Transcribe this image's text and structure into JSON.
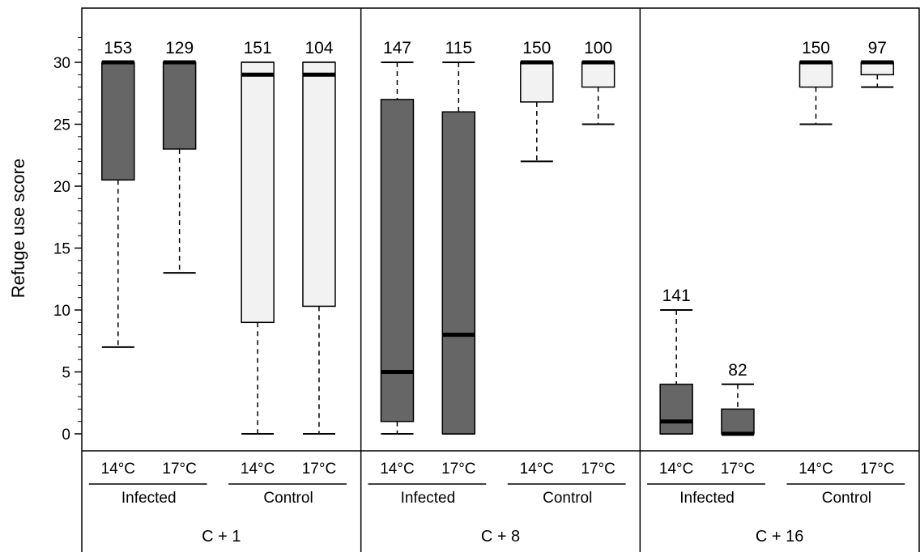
{
  "chart_data": {
    "type": "boxplot",
    "ylabel": "Refuge use score",
    "ylim": [
      0,
      33
    ],
    "yticks": [
      0,
      5,
      10,
      15,
      20,
      25,
      30
    ],
    "colors": {
      "infected": "#666666",
      "control": "#f2f2f2",
      "median": "#000000"
    },
    "panels": [
      {
        "label": "C + 1",
        "groups": [
          {
            "label": "Infected",
            "fill": "infected",
            "boxes": [
              {
                "temp": "14°C",
                "n": "153",
                "whisker_low": 7,
                "q1": 20.5,
                "median": 30,
                "q3": 30,
                "whisker_high": 30
              },
              {
                "temp": "17°C",
                "n": "129",
                "whisker_low": 13,
                "q1": 23,
                "median": 30,
                "q3": 30,
                "whisker_high": 30
              }
            ]
          },
          {
            "label": "Control",
            "fill": "control",
            "boxes": [
              {
                "temp": "14°C",
                "n": "151",
                "whisker_low": 0,
                "q1": 9,
                "median": 29,
                "q3": 30,
                "whisker_high": 30
              },
              {
                "temp": "17°C",
                "n": "104",
                "whisker_low": 0,
                "q1": 10.3,
                "median": 29,
                "q3": 30,
                "whisker_high": 30
              }
            ]
          }
        ]
      },
      {
        "label": "C + 8",
        "groups": [
          {
            "label": "Infected",
            "fill": "infected",
            "boxes": [
              {
                "temp": "14°C",
                "n": "147",
                "whisker_low": 0,
                "q1": 1,
                "median": 5,
                "q3": 27,
                "whisker_high": 30
              },
              {
                "temp": "17°C",
                "n": "115",
                "whisker_low": 0,
                "q1": 0,
                "median": 8,
                "q3": 26,
                "whisker_high": 30
              }
            ]
          },
          {
            "label": "Control",
            "fill": "control",
            "boxes": [
              {
                "temp": "14°C",
                "n": "150",
                "whisker_low": 22,
                "q1": 26.8,
                "median": 30,
                "q3": 30,
                "whisker_high": 30
              },
              {
                "temp": "17°C",
                "n": "100",
                "whisker_low": 25,
                "q1": 28,
                "median": 30,
                "q3": 30,
                "whisker_high": 30
              }
            ]
          }
        ]
      },
      {
        "label": "C + 16",
        "groups": [
          {
            "label": "Infected",
            "fill": "infected",
            "boxes": [
              {
                "temp": "14°C",
                "n": "141",
                "whisker_low": 0,
                "q1": 0,
                "median": 1,
                "q3": 4,
                "whisker_high": 10
              },
              {
                "temp": "17°C",
                "n": "82",
                "whisker_low": 0,
                "q1": 0,
                "median": 0,
                "q3": 2,
                "whisker_high": 4
              }
            ]
          },
          {
            "label": "Control",
            "fill": "control",
            "boxes": [
              {
                "temp": "14°C",
                "n": "150",
                "whisker_low": 25,
                "q1": 28,
                "median": 30,
                "q3": 30,
                "whisker_high": 30
              },
              {
                "temp": "17°C",
                "n": "97",
                "whisker_low": 28,
                "q1": 29,
                "median": 30,
                "q3": 30,
                "whisker_high": 30
              }
            ]
          }
        ]
      }
    ]
  }
}
